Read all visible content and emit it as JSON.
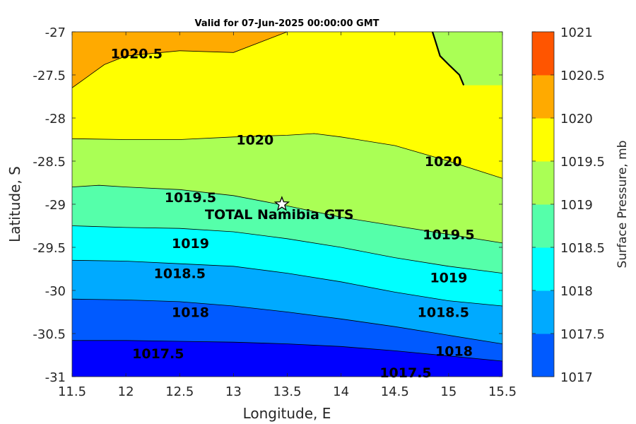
{
  "chart_data": {
    "type": "filled-contour",
    "title": "Valid for 07-Jun-2025 00:00:00 GMT",
    "xlabel": "Longitude, E",
    "ylabel": "Latitude, S",
    "colorbar_label": "Surface Pressure, mb",
    "xlim": [
      11.5,
      15.5
    ],
    "ylim": [
      -31,
      -27
    ],
    "x_ticks": [
      "11.5",
      "12",
      "12.5",
      "13",
      "13.5",
      "14",
      "14.5",
      "15",
      "15.5"
    ],
    "y_ticks": [
      "-27",
      "-27.5",
      "-28",
      "-28.5",
      "-29",
      "-29.5",
      "-30",
      "-30.5",
      "-31"
    ],
    "colorbar": {
      "levels": [
        1017,
        1017.5,
        1018,
        1018.5,
        1019,
        1019.5,
        1020,
        1020.5,
        1021
      ],
      "tick_labels": [
        "1017",
        "1017.5",
        "1018",
        "1018.5",
        "1019",
        "1019.5",
        "1020",
        "1020.5",
        "1021"
      ],
      "colors": [
        "#0000ff",
        "#005aff",
        "#00aaff",
        "#00ffff",
        "#55ffaa",
        "#aaff55",
        "#ffff00",
        "#ffaa00",
        "#ff5500"
      ]
    },
    "contours": [
      {
        "level": 1017.5,
        "label": "1017.5",
        "points": [
          [
            11.5,
            -30.58
          ],
          [
            12.0,
            -30.58
          ],
          [
            12.5,
            -30.59
          ],
          [
            13.0,
            -30.6
          ],
          [
            13.5,
            -30.62
          ],
          [
            14.0,
            -30.65
          ],
          [
            14.5,
            -30.7
          ],
          [
            15.0,
            -30.76
          ],
          [
            15.5,
            -30.82
          ]
        ]
      },
      {
        "level": 1018,
        "label": "1018",
        "points": [
          [
            11.5,
            -30.1
          ],
          [
            12.0,
            -30.11
          ],
          [
            12.5,
            -30.13
          ],
          [
            13.0,
            -30.18
          ],
          [
            13.5,
            -30.25
          ],
          [
            14.0,
            -30.33
          ],
          [
            14.5,
            -30.42
          ],
          [
            15.0,
            -30.52
          ],
          [
            15.5,
            -30.62
          ]
        ]
      },
      {
        "level": 1018.5,
        "label": "1018.5",
        "points": [
          [
            11.5,
            -29.65
          ],
          [
            12.0,
            -29.66
          ],
          [
            12.5,
            -29.69
          ],
          [
            13.0,
            -29.72
          ],
          [
            13.5,
            -29.8
          ],
          [
            14.0,
            -29.9
          ],
          [
            14.5,
            -30.02
          ],
          [
            15.0,
            -30.12
          ],
          [
            15.5,
            -30.18
          ]
        ]
      },
      {
        "level": 1019,
        "label": "1019",
        "points": [
          [
            11.5,
            -29.25
          ],
          [
            12.0,
            -29.27
          ],
          [
            12.5,
            -29.28
          ],
          [
            13.0,
            -29.32
          ],
          [
            13.5,
            -29.4
          ],
          [
            14.0,
            -29.5
          ],
          [
            14.5,
            -29.62
          ],
          [
            15.0,
            -29.72
          ],
          [
            15.5,
            -29.8
          ]
        ]
      },
      {
        "level": 1019.5,
        "label": "1019.5",
        "points": [
          [
            11.5,
            -28.8
          ],
          [
            11.75,
            -28.78
          ],
          [
            12.0,
            -28.8
          ],
          [
            12.5,
            -28.83
          ],
          [
            13.0,
            -28.9
          ],
          [
            13.5,
            -29.02
          ],
          [
            14.0,
            -29.15
          ],
          [
            14.5,
            -29.25
          ],
          [
            15.0,
            -29.35
          ],
          [
            15.5,
            -29.45
          ]
        ]
      },
      {
        "level": 1020,
        "label": "1020",
        "points": [
          [
            11.5,
            -28.24
          ],
          [
            12.0,
            -28.25
          ],
          [
            12.5,
            -28.25
          ],
          [
            13.0,
            -28.22
          ],
          [
            13.5,
            -28.2
          ],
          [
            13.75,
            -28.18
          ],
          [
            14.0,
            -28.22
          ],
          [
            14.5,
            -28.32
          ],
          [
            15.0,
            -28.5
          ],
          [
            15.5,
            -28.7
          ]
        ]
      },
      {
        "level": 1020.5,
        "label": "1020.5",
        "points": [
          [
            11.5,
            -27.65
          ],
          [
            11.8,
            -27.38
          ],
          [
            12.0,
            -27.28
          ],
          [
            12.5,
            -27.22
          ],
          [
            13.0,
            -27.24
          ],
          [
            13.5,
            -27.0
          ]
        ]
      }
    ],
    "contour_labels": [
      {
        "text": "1020.5",
        "x": 12.1,
        "y": -27.25
      },
      {
        "text": "1020",
        "x": 13.2,
        "y": -28.25
      },
      {
        "text": "1020",
        "x": 14.95,
        "y": -28.5
      },
      {
        "text": "1019.5",
        "x": 12.6,
        "y": -28.92
      },
      {
        "text": "1019.5",
        "x": 15.0,
        "y": -29.35
      },
      {
        "text": "1019",
        "x": 12.6,
        "y": -29.45
      },
      {
        "text": "1019",
        "x": 15.0,
        "y": -29.85
      },
      {
        "text": "1018.5",
        "x": 12.5,
        "y": -29.8
      },
      {
        "text": "1018.5",
        "x": 14.95,
        "y": -30.25
      },
      {
        "text": "1018",
        "x": 12.6,
        "y": -30.25
      },
      {
        "text": "1018",
        "x": 15.05,
        "y": -30.7
      },
      {
        "text": "1017.5",
        "x": 12.3,
        "y": -30.73
      },
      {
        "text": "1017.5",
        "x": 14.6,
        "y": -30.95
      }
    ],
    "station": {
      "name": "TOTAL Namibia GTS",
      "lon": 13.45,
      "lat": -29.0
    },
    "coastline": [
      [
        14.85,
        -27.0
      ],
      [
        14.88,
        -27.12
      ],
      [
        14.92,
        -27.28
      ],
      [
        15.0,
        -27.38
      ],
      [
        15.1,
        -27.5
      ],
      [
        15.14,
        -27.62
      ]
    ],
    "coastline_land_color": "#aaff55"
  }
}
